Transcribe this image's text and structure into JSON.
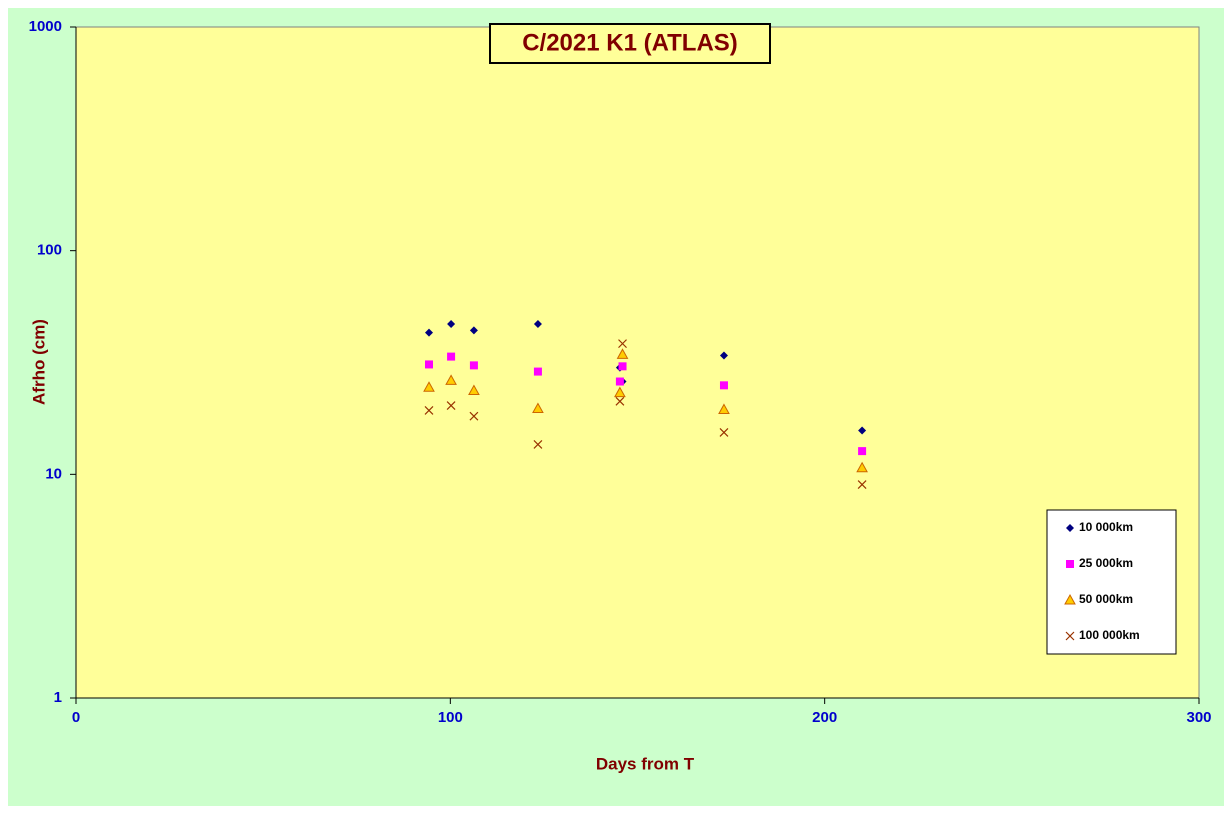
{
  "chart_data": {
    "type": "scatter",
    "title": "C/2021 K1 (ATLAS)",
    "x_label": "Days from T",
    "y_label": "Afrho (cm)",
    "x": [
      94.3,
      100.2,
      106.3,
      123.4,
      145.3,
      146,
      173.1,
      210
    ],
    "series": [
      {
        "name": "10 000km",
        "color": "#000080",
        "marker": "diamond",
        "values": [
          43,
          47,
          44,
          47,
          30,
          26,
          34,
          15.7
        ]
      },
      {
        "name": "25 000km",
        "color": "#ff00ff",
        "marker": "square",
        "values": [
          31,
          33.6,
          30.7,
          28.8,
          26,
          30.4,
          25,
          12.7
        ]
      },
      {
        "name": "50 000km",
        "color": "#cc6600",
        "marker": "triangle",
        "values": [
          24.5,
          26.3,
          23.7,
          19.7,
          23.2,
          34.4,
          19.5,
          10.7
        ]
      },
      {
        "name": "100 000km",
        "color": "#993300",
        "marker": "cross",
        "values": [
          19.3,
          20.3,
          18.2,
          13.6,
          21.2,
          38.4,
          15.4,
          9.0
        ]
      }
    ],
    "xlim": [
      0,
      300
    ],
    "xticks": [
      0,
      100,
      200,
      300
    ],
    "ylim": [
      1,
      1000
    ],
    "yticks": [
      1,
      10,
      100,
      1000
    ],
    "y_log": true,
    "legend": "lower-right"
  }
}
